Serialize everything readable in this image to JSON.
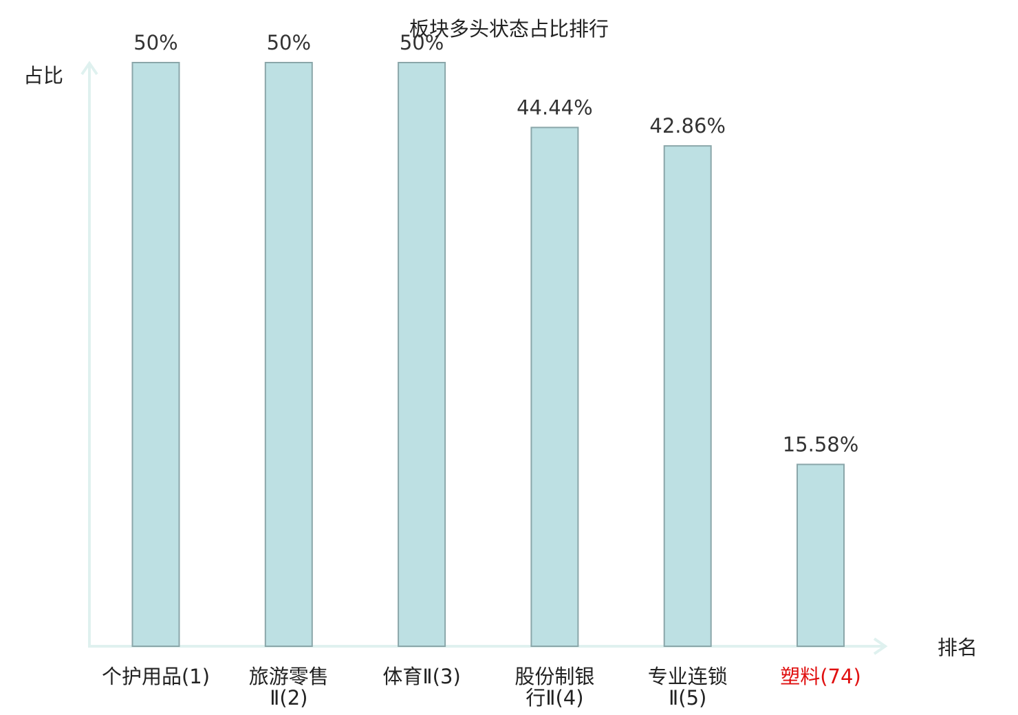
{
  "chart_data": {
    "type": "bar",
    "title": "板块多头状态占比排行",
    "xlabel": "排名",
    "ylabel": "占比",
    "ylim": [
      0,
      50
    ],
    "grid": false,
    "categories": [
      {
        "name": "个护用品",
        "rank": "(1)",
        "lines": [
          "个护用品(1)"
        ],
        "highlight": false
      },
      {
        "name": "旅游零售Ⅱ",
        "rank": "(2)",
        "lines": [
          "旅游零售",
          "Ⅱ(2)"
        ],
        "highlight": false
      },
      {
        "name": "体育Ⅱ",
        "rank": "(3)",
        "lines": [
          "体育Ⅱ(3)"
        ],
        "highlight": false
      },
      {
        "name": "股份制银行Ⅱ",
        "rank": "(4)",
        "lines": [
          "股份制银",
          "行Ⅱ(4)"
        ],
        "highlight": false
      },
      {
        "name": "专业连锁Ⅱ",
        "rank": "(5)",
        "lines": [
          "专业连锁",
          "Ⅱ(5)"
        ],
        "highlight": false
      },
      {
        "name": "塑料",
        "rank": "(74)",
        "lines": [
          "塑料(74)"
        ],
        "highlight": true
      }
    ],
    "values": [
      50,
      50,
      50,
      44.44,
      42.86,
      15.58
    ],
    "value_labels": [
      "50%",
      "50%",
      "50%",
      "44.44%",
      "42.86%",
      "15.58%"
    ]
  },
  "colors": {
    "bar_fill": "#bde0e3",
    "bar_stroke": "#8aa6a9",
    "axis": "#dff1ef",
    "highlight": "#e01010",
    "text": "#222222"
  }
}
